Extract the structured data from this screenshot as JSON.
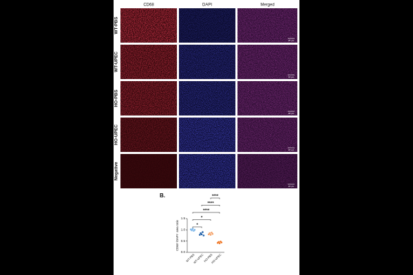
{
  "figure": {
    "columns": [
      "CD68",
      "DAPI",
      "Merged"
    ],
    "rows": [
      "WT-PBS",
      "WT-UPEC",
      "HO-PBS",
      "HO-UPEC",
      "Negative"
    ],
    "scale_bar": "20 µm"
  },
  "chart_data": {
    "type": "scatter",
    "panel_label": "B.",
    "y_label": "CD68⁺/DAPI⁺ area ratio",
    "categories": [
      "WT-PBS",
      "WT-UPEC",
      "HO-PBS",
      "HO-UPEC"
    ],
    "colors": [
      "#7fb8ea",
      "#1f5fa8",
      "#f4a36b",
      "#f07a2a"
    ],
    "points": [
      [
        1.02,
        0.98,
        1.05,
        0.96,
        1.0
      ],
      [
        0.78,
        0.85,
        0.8,
        0.9,
        0.75
      ],
      [
        0.8,
        0.85,
        0.78,
        0.88,
        0.82
      ],
      [
        0.42,
        0.46,
        0.4,
        0.48,
        0.44
      ]
    ],
    "ylim": [
      0,
      1.5
    ],
    "yticks": [
      {
        "value": 0,
        "label": "0.0"
      },
      0.5,
      {
        "value": 1,
        "label": "1.0"
      },
      1.5
    ],
    "comparisons": [
      {
        "pair": [
          0,
          1
        ],
        "label": "*"
      },
      {
        "pair": [
          0,
          2
        ],
        "label": "*"
      },
      {
        "pair": [
          0,
          3
        ],
        "label": "****"
      },
      {
        "pair": [
          1,
          3
        ],
        "label": "****"
      },
      {
        "pair": [
          2,
          3
        ],
        "label": "****"
      }
    ]
  }
}
